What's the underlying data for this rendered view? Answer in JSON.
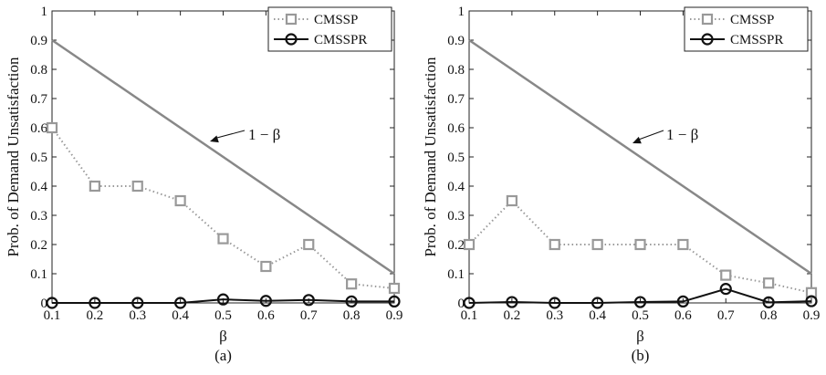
{
  "chart_data": [
    {
      "type": "line",
      "panel_label": "(a)",
      "xlabel": "β",
      "ylabel": "Prob. of Demand Unsatisfaction",
      "xlim": [
        0.1,
        0.9
      ],
      "ylim": [
        0,
        1
      ],
      "xticks": [
        "0.1",
        "0.2",
        "0.3",
        "0.4",
        "0.5",
        "0.6",
        "0.7",
        "0.8",
        "0.9"
      ],
      "yticks": [
        "0",
        "0.1",
        "0.2",
        "0.3",
        "0.4",
        "0.5",
        "0.6",
        "0.7",
        "0.8",
        "0.9",
        "1"
      ],
      "legend_position": "top-right",
      "grid": false,
      "annotation": "1 − β",
      "series": [
        {
          "name": "CMSSP",
          "color": "#999999",
          "style": "dotted",
          "marker": "square",
          "x": [
            0.1,
            0.2,
            0.3,
            0.4,
            0.5,
            0.6,
            0.7,
            0.8,
            0.9
          ],
          "values": [
            0.6,
            0.4,
            0.4,
            0.35,
            0.22,
            0.125,
            0.2,
            0.065,
            0.05
          ]
        },
        {
          "name": "CMSSPR",
          "color": "#111111",
          "style": "solid",
          "marker": "circle",
          "x": [
            0.1,
            0.2,
            0.3,
            0.4,
            0.5,
            0.6,
            0.7,
            0.8,
            0.9
          ],
          "values": [
            0.0,
            0.0,
            0.0,
            0.0,
            0.012,
            0.007,
            0.01,
            0.005,
            0.005
          ]
        },
        {
          "name": "",
          "color": "#888888",
          "style": "solid",
          "marker": "none",
          "x": [
            0.1,
            0.9
          ],
          "values": [
            0.9,
            0.1
          ]
        }
      ]
    },
    {
      "type": "line",
      "panel_label": "(b)",
      "xlabel": "β",
      "ylabel": "Prob. of Demand Unsatisfaction",
      "xlim": [
        0.1,
        0.9
      ],
      "ylim": [
        0,
        1
      ],
      "xticks": [
        "0.1",
        "0.2",
        "0.3",
        "0.4",
        "0.5",
        "0.6",
        "0.7",
        "0.8",
        "0.9"
      ],
      "yticks": [
        "0",
        "0.1",
        "0.2",
        "0.3",
        "0.4",
        "0.5",
        "0.6",
        "0.7",
        "0.8",
        "0.9",
        "1"
      ],
      "legend_position": "top-right",
      "grid": false,
      "annotation": "1 − β",
      "series": [
        {
          "name": "CMSSP",
          "color": "#999999",
          "style": "dotted",
          "marker": "square",
          "x": [
            0.1,
            0.2,
            0.3,
            0.4,
            0.5,
            0.6,
            0.7,
            0.8,
            0.9
          ],
          "values": [
            0.2,
            0.35,
            0.2,
            0.2,
            0.2,
            0.2,
            0.095,
            0.068,
            0.035
          ]
        },
        {
          "name": "CMSSPR",
          "color": "#111111",
          "style": "solid",
          "marker": "circle",
          "x": [
            0.1,
            0.2,
            0.3,
            0.4,
            0.5,
            0.6,
            0.7,
            0.8,
            0.9
          ],
          "values": [
            0.0,
            0.003,
            0.0,
            0.0,
            0.003,
            0.005,
            0.048,
            0.002,
            0.006
          ]
        },
        {
          "name": "",
          "color": "#888888",
          "style": "solid",
          "marker": "none",
          "x": [
            0.1,
            0.9
          ],
          "values": [
            0.9,
            0.1
          ]
        }
      ]
    }
  ]
}
